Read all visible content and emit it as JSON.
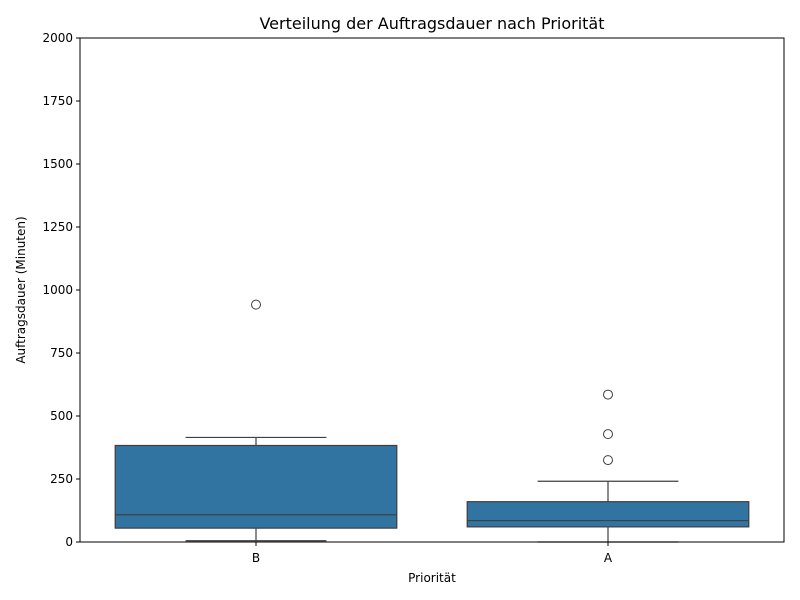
{
  "chart_data": {
    "type": "box",
    "title": "Verteilung der Auftragsdauer nach Priorität",
    "xlabel": "Priorität",
    "ylabel": "Auftragsdauer (Minuten)",
    "ylim": [
      0,
      2000
    ],
    "yticks": [
      0,
      250,
      500,
      750,
      1000,
      1250,
      1500,
      1750,
      2000
    ],
    "categories": [
      "B",
      "A"
    ],
    "boxes": [
      {
        "category": "B",
        "whisker_low": 5,
        "q1": 55,
        "median": 108,
        "q3": 383,
        "whisker_high": 415,
        "outliers": [
          942
        ]
      },
      {
        "category": "A",
        "whisker_low": 0,
        "q1": 60,
        "median": 85,
        "q3": 160,
        "whisker_high": 241,
        "outliers": [
          325,
          428,
          585
        ]
      }
    ],
    "box_color": "#3274a1",
    "line_color": "#3f3f3f",
    "grid": false,
    "legend": "none"
  }
}
